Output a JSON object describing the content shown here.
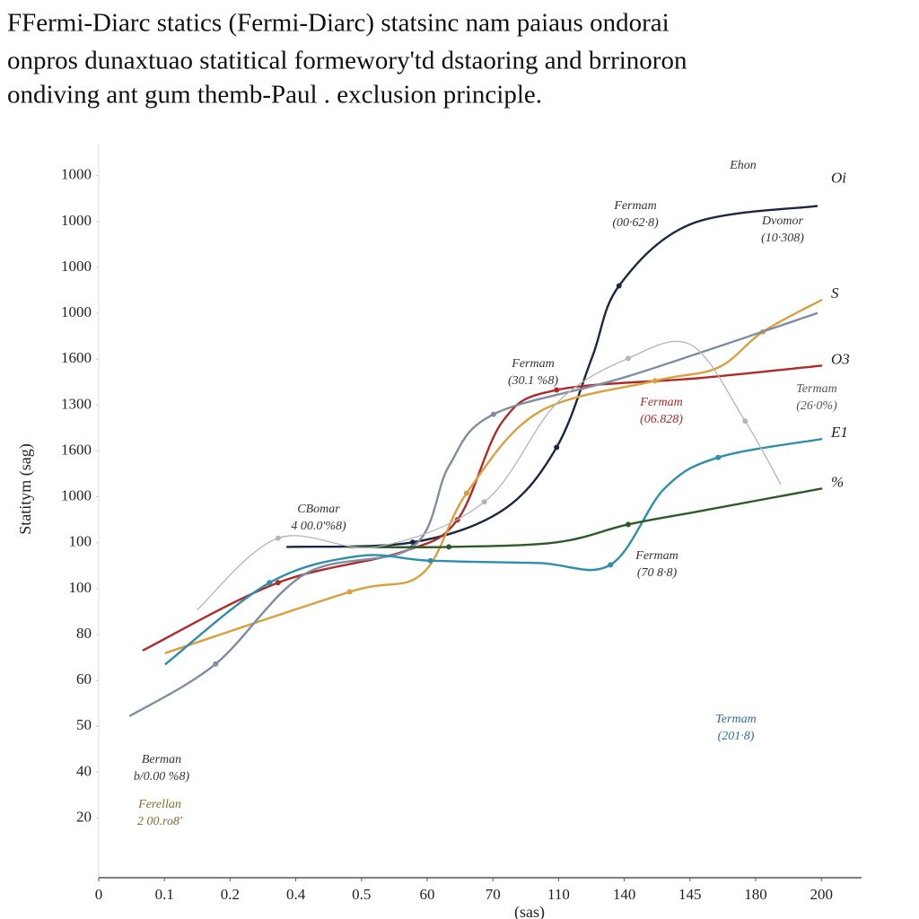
{
  "chart_data": {
    "type": "line",
    "title_lines": [
      "FFermi-Diarc statics (Fermi-Diarc) statsinc nam paiaus ondorai",
      "onpros dunaxtuao statitical formewory'td dstaoring and brrinoron",
      "ondiving ant gum themb-Paul . exclusion principle."
    ],
    "ylabel": "Statitym (sag)",
    "xlabel": "(sas)",
    "xlim": [
      0,
      11.5
    ],
    "xticks": [
      0,
      {
        "value": 1,
        "label": "0.1"
      },
      {
        "value": 2,
        "label": "0.2"
      },
      {
        "value": 3,
        "label": "0.4"
      },
      {
        "value": 4,
        "label": "0.5"
      },
      {
        "value": 5,
        "label": "60"
      },
      {
        "value": 6,
        "label": "70"
      },
      {
        "value": 7,
        "label": "110"
      },
      {
        "value": 8,
        "label": "140"
      },
      {
        "value": 9,
        "label": "145"
      },
      {
        "value": 10,
        "label": "180"
      },
      {
        "value": 11,
        "label": "200"
      }
    ],
    "ylim": [
      -0.3,
      15.7
    ],
    "yticks": [
      {
        "value": 1,
        "label": "20"
      },
      {
        "value": 2,
        "label": "40"
      },
      {
        "value": 3,
        "label": "50"
      },
      {
        "value": 4,
        "label": "60"
      },
      {
        "value": 5,
        "label": "80"
      },
      {
        "value": 6,
        "label": "100"
      },
      {
        "value": 7,
        "label": "100"
      },
      {
        "value": 8,
        "label": "1000"
      },
      {
        "value": 9,
        "label": "1600"
      },
      {
        "value": 10,
        "label": "1300"
      },
      {
        "value": 11,
        "label": "1600"
      },
      {
        "value": 12,
        "label": "1000"
      },
      {
        "value": 13,
        "label": "1000"
      },
      {
        "value": 14,
        "label": "1000"
      },
      {
        "value": 15,
        "label": "1000"
      }
    ],
    "grid": false,
    "series": [
      {
        "name": "Oi",
        "color": "#1c2744",
        "x": [
          2.87,
          4.78,
          6.15,
          6.97,
          7.51,
          7.92,
          9.02,
          10.93
        ],
        "values": [
          6.91,
          7.01,
          7.71,
          9.08,
          11.04,
          12.6,
          13.95,
          14.34
        ]
      },
      {
        "name": "O3",
        "color": "#b02a2a",
        "x": [
          0.68,
          2.73,
          4.64,
          5.46,
          6.15,
          6.97,
          9.15,
          11.0
        ],
        "values": [
          4.66,
          6.13,
          6.81,
          7.5,
          9.65,
          10.33,
          10.59,
          10.86
        ]
      },
      {
        "name": "S",
        "color": "#d9a040",
        "x": [
          1.02,
          3.82,
          4.92,
          5.6,
          6.69,
          8.47,
          9.43,
          10.11,
          11.0
        ],
        "values": [
          4.6,
          5.93,
          6.32,
          8.08,
          9.84,
          10.53,
          10.82,
          11.6,
          12.29
        ]
      },
      {
        "color": "#7f8ea3",
        "x": [
          0.48,
          1.78,
          3.14,
          4.78,
          5.33,
          6.01,
          8.06,
          10.93
        ],
        "values": [
          3.23,
          4.36,
          6.32,
          6.91,
          8.67,
          9.8,
          10.63,
          12.0
        ]
      },
      {
        "name": "E1",
        "color": "#2f8fa8",
        "x": [
          1.02,
          2.6,
          3.96,
          5.05,
          6.69,
          7.79,
          8.61,
          9.43,
          11.0
        ],
        "values": [
          4.36,
          6.13,
          6.71,
          6.61,
          6.56,
          6.52,
          8.18,
          8.86,
          9.26
        ]
      },
      {
        "name": "%",
        "color": "#2e5a2a",
        "x": [
          3.82,
          5.33,
          6.97,
          8.06,
          9.15,
          11.0
        ],
        "values": [
          6.91,
          6.91,
          7.01,
          7.4,
          7.69,
          8.18
        ]
      },
      {
        "color": "#b5b5b5",
        "x": [
          1.5,
          2.73,
          4.23,
          5.87,
          6.97,
          8.06,
          9.02,
          9.84,
          10.38
        ],
        "values": [
          5.54,
          7.1,
          6.91,
          7.89,
          10.04,
          11.02,
          11.31,
          9.65,
          8.28
        ]
      }
    ],
    "annotations": [
      {
        "label": "Ehon"
      },
      {
        "label": "Fermam",
        "value_text": "(00·62·8)"
      },
      {
        "label": "Dvomor",
        "value_text": "(10·308)"
      },
      {
        "label": "Fermam",
        "value_text": "(30.1 %8)"
      },
      {
        "label": "Fermam",
        "value_text": "(06.828)"
      },
      {
        "label": "Termam",
        "value_text": "(26·0%)"
      },
      {
        "label": "CBomar",
        "value_text": "4 00.0'%8)"
      },
      {
        "label": "Fermam",
        "value_text": "(70 8·8)"
      },
      {
        "label": "Termam",
        "value_text": "(201·8)"
      },
      {
        "label": "Berman",
        "value_text": "b/0.00 %8)"
      },
      {
        "label": "Ferellan",
        "value_text": "2 00.ro8'"
      }
    ]
  }
}
